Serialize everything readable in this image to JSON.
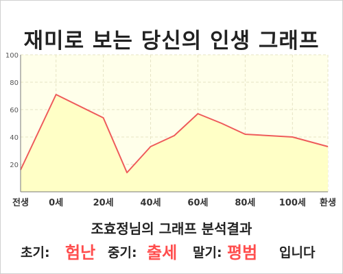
{
  "title": "재미로 보는 당신의 인생 그래프",
  "chart_data": {
    "type": "area",
    "x": [
      -15,
      0,
      20,
      30,
      40,
      50,
      60,
      70,
      80,
      100,
      115
    ],
    "y": [
      16,
      71,
      54,
      14,
      33,
      41,
      57,
      50,
      42,
      40,
      33
    ],
    "xlim": [
      -15,
      115
    ],
    "ylim": [
      0,
      100
    ],
    "yticks": [
      20,
      40,
      60,
      80,
      100
    ],
    "xtick_labels": [
      {
        "x": -15,
        "label": "전생"
      },
      {
        "x": 0,
        "label": "0세"
      },
      {
        "x": 20,
        "label": "20세"
      },
      {
        "x": 40,
        "label": "40세"
      },
      {
        "x": 60,
        "label": "60세"
      },
      {
        "x": 80,
        "label": "80세"
      },
      {
        "x": 100,
        "label": "100세"
      },
      {
        "x": 115,
        "label": "환생"
      }
    ],
    "grid": true,
    "line_color": "#ee5a5a",
    "fill_color": "#ffffc6",
    "plot_bg": "#ffffea"
  },
  "result": {
    "heading": "조효정님의 그래프 분석결과",
    "early_label": "초기:",
    "early_value": "험난",
    "mid_label": "중기:",
    "mid_value": "출세",
    "late_label": "말기:",
    "late_value": "평범",
    "suffix": "입니다"
  }
}
